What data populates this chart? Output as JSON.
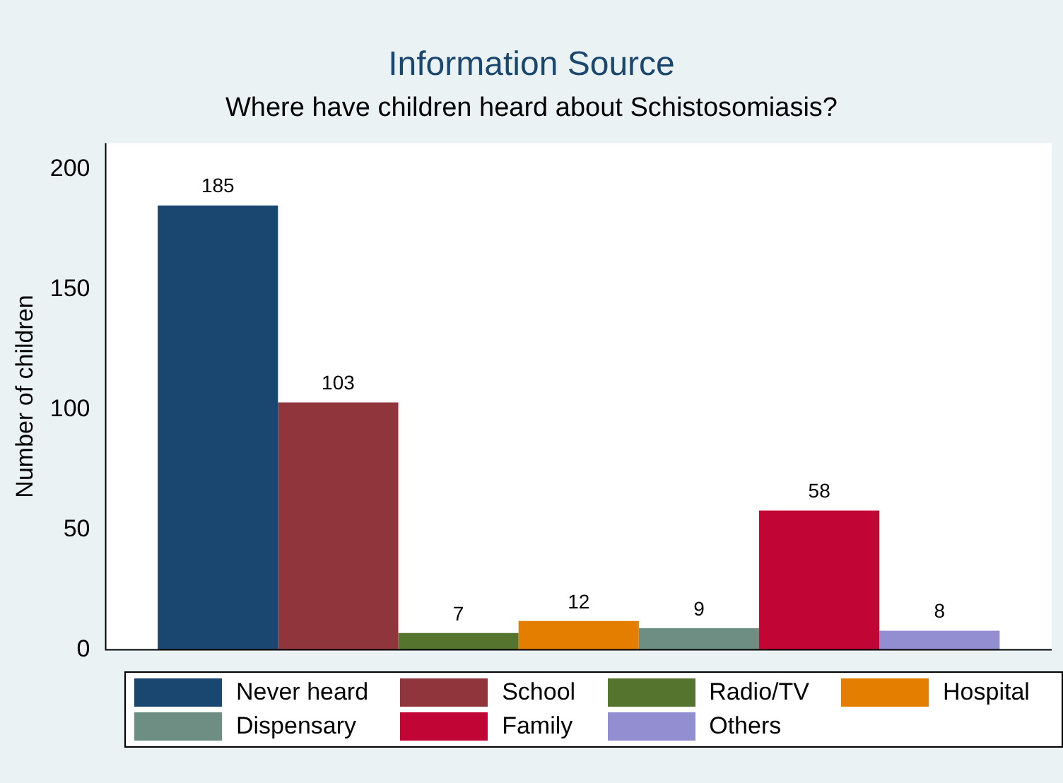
{
  "chart_data": {
    "type": "bar",
    "title": "Information Source",
    "subtitle": "Where have children heard about Schistosomiasis?",
    "ylabel": "Number of children",
    "categories": [
      null
    ],
    "series": [
      {
        "name": "Never heard",
        "color": "#1a476f",
        "values": [
          185
        ]
      },
      {
        "name": "School",
        "color": "#90353b",
        "values": [
          103
        ]
      },
      {
        "name": "Radio/TV",
        "color": "#55752f",
        "values": [
          7
        ]
      },
      {
        "name": "Hospital",
        "color": "#e37e00",
        "values": [
          12
        ]
      },
      {
        "name": "Dispensary",
        "color": "#6e8e84",
        "values": [
          9
        ]
      },
      {
        "name": "Family",
        "color": "#c10534",
        "values": [
          58
        ]
      },
      {
        "name": "Others",
        "color": "#938dd2",
        "values": [
          8
        ]
      }
    ],
    "ylim": [
      0,
      211
    ],
    "yticks": [
      0,
      50,
      100,
      150,
      200
    ],
    "grid": false,
    "legend": "bottom",
    "data_labels": true
  }
}
